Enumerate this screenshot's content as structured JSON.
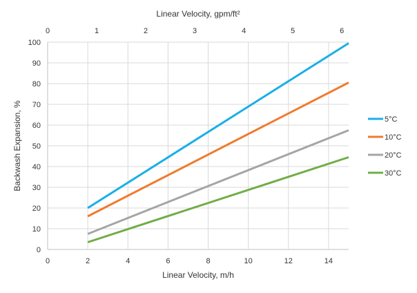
{
  "chart_data": {
    "type": "line",
    "xlabel": "Linear Velocity, m/h",
    "x2label": "Linear Velocity, gpm/ft²",
    "ylabel": "Backwash Expansion, %",
    "xlim": [
      0,
      15
    ],
    "ylim": [
      0,
      100
    ],
    "x_ticks": [
      "0",
      "2",
      "4",
      "6",
      "8",
      "10",
      "12",
      "14"
    ],
    "x2_ticks": [
      "0",
      "1",
      "2",
      "3",
      "4",
      "5",
      "6"
    ],
    "y_ticks": [
      "0",
      "10",
      "20",
      "30",
      "40",
      "50",
      "60",
      "70",
      "80",
      "90",
      "100"
    ],
    "grid": true,
    "legend_position": "right",
    "series": [
      {
        "name": "5°C",
        "color": "#1aafe6",
        "x": [
          2,
          15
        ],
        "y": [
          20,
          99.5
        ]
      },
      {
        "name": "10°C",
        "color": "#ef7b2d",
        "x": [
          2,
          15
        ],
        "y": [
          16,
          80.5
        ]
      },
      {
        "name": "20°C",
        "color": "#a5a5a5",
        "x": [
          2,
          15
        ],
        "y": [
          7.5,
          57.5
        ]
      },
      {
        "name": "30°C",
        "color": "#70ad47",
        "x": [
          2,
          15
        ],
        "y": [
          3.5,
          44.5
        ]
      }
    ]
  }
}
